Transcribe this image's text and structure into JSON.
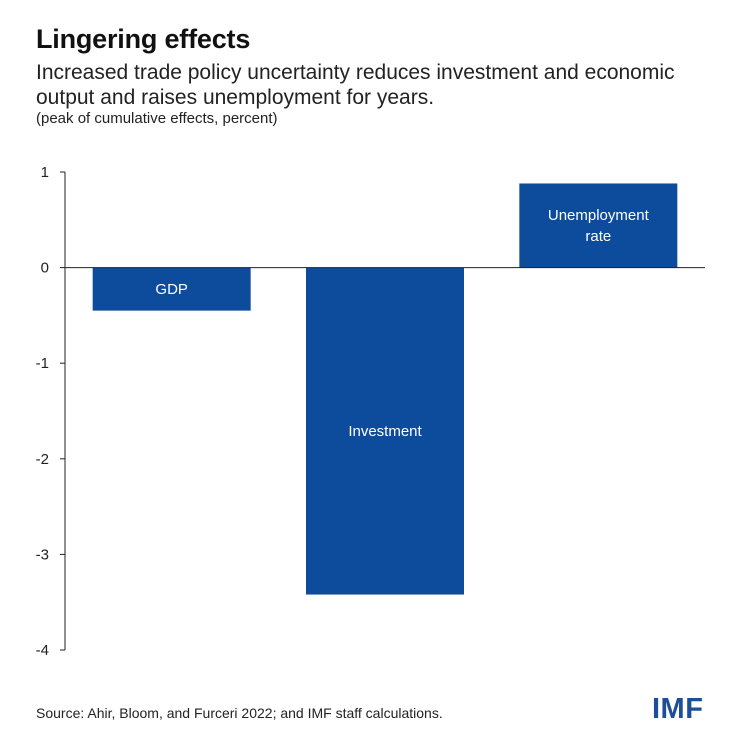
{
  "header": {
    "title": "Lingering effects",
    "subtitle": "Increased trade policy uncertainty reduces investment and economic output and raises unemployment for years.",
    "units": "(peak of cumulative effects, percent)"
  },
  "footer": {
    "source": "Source: Ahir, Bloom, and Furceri 2022; and IMF staff calculations.",
    "logo_text": "IMF"
  },
  "colors": {
    "bar": "#0d4c9c",
    "axis": "#222222",
    "brand": "#1f4e99"
  },
  "chart_data": {
    "type": "bar",
    "title": "Lingering effects",
    "subtitle": "Increased trade policy uncertainty reduces investment and economic output and raises unemployment for years.",
    "ylabel": "(peak of cumulative effects, percent)",
    "xlabel": "",
    "ylim": [
      -4,
      1
    ],
    "yticks": [
      1,
      0,
      -1,
      -2,
      -3,
      -4
    ],
    "ytick_labels": [
      "1",
      "0",
      "-1",
      "-2",
      "-3",
      "-4"
    ],
    "grid": false,
    "categories": [
      "GDP",
      "Investment",
      "Unemployment rate"
    ],
    "category_label_lines": [
      [
        "GDP"
      ],
      [
        "Investment"
      ],
      [
        "Unemployment",
        "rate"
      ]
    ],
    "values": [
      -0.45,
      -3.42,
      0.88
    ]
  }
}
